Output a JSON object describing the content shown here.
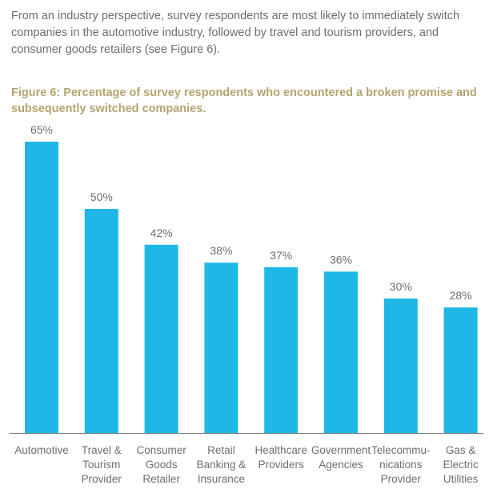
{
  "intro_text": "From an industry perspective, survey respondents are most likely to immediately switch companies in the automotive industry, followed by travel and tourism providers, and consumer goods retailers (see Figure 6).",
  "figure_title": "Figure 6: Percentage of survey respondents who encountered a broken promise and subsequently switched companies.",
  "colors": {
    "bar": "#1fb7e6",
    "axis": "#7a7a7a",
    "text": "#6e6e6e",
    "title": "#b5a46f"
  },
  "chart_data": {
    "type": "bar",
    "categories": [
      [
        "Automotive"
      ],
      [
        "Travel &",
        "Tourism",
        "Provider"
      ],
      [
        "Consumer",
        "Goods",
        "Retailer"
      ],
      [
        "Retail",
        "Banking &",
        "Insurance"
      ],
      [
        "Healthcare",
        "Providers"
      ],
      [
        "Government",
        "Agencies"
      ],
      [
        "Telecommu-",
        "nications",
        "Provider"
      ],
      [
        "Gas &",
        "Electric",
        "Utilities"
      ]
    ],
    "values": [
      65,
      50,
      42,
      38,
      37,
      36,
      30,
      28
    ],
    "value_labels": [
      "65%",
      "50%",
      "42%",
      "38%",
      "37%",
      "36%",
      "30%",
      "28%"
    ],
    "ylim": [
      0,
      70
    ],
    "grid": false
  }
}
